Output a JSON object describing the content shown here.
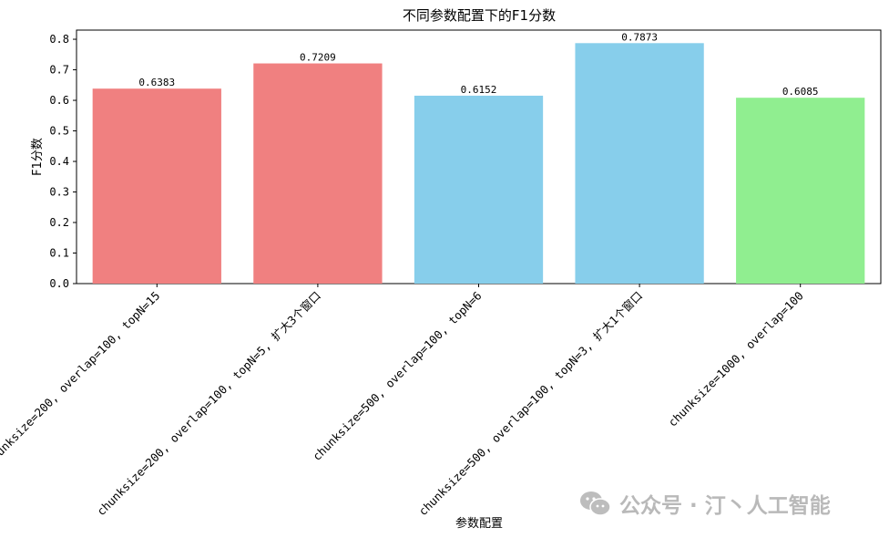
{
  "chart_data": {
    "type": "bar",
    "title": "不同参数配置下的F1分数",
    "xlabel": "参数配置",
    "ylabel": "F1分数",
    "ylim": [
      0,
      0.83
    ],
    "yticks": [
      "0.0",
      "0.1",
      "0.2",
      "0.3",
      "0.4",
      "0.5",
      "0.6",
      "0.7",
      "0.8"
    ],
    "categories": [
      "chunksize=200, overlap=100, topN=15",
      "chunksize=200, overlap=100, topN=5, 扩大3个窗口",
      "chunksize=500, overlap=100, topN=6",
      "chunksize=500, overlap=100, topN=3, 扩大1个窗口",
      "chunksize=1000, overlap=100"
    ],
    "values": [
      0.6383,
      0.7209,
      0.6152,
      0.7873,
      0.6085
    ],
    "value_labels": [
      "0.6383",
      "0.7209",
      "0.6152",
      "0.7873",
      "0.6085"
    ],
    "colors": [
      "#f08080",
      "#f08080",
      "#87ceeb",
      "#87ceeb",
      "#90ee90"
    ],
    "grid": false,
    "legend": "none"
  },
  "watermark": {
    "icon": "wechat-icon",
    "text": "公众号 · 汀丶人工智能"
  }
}
